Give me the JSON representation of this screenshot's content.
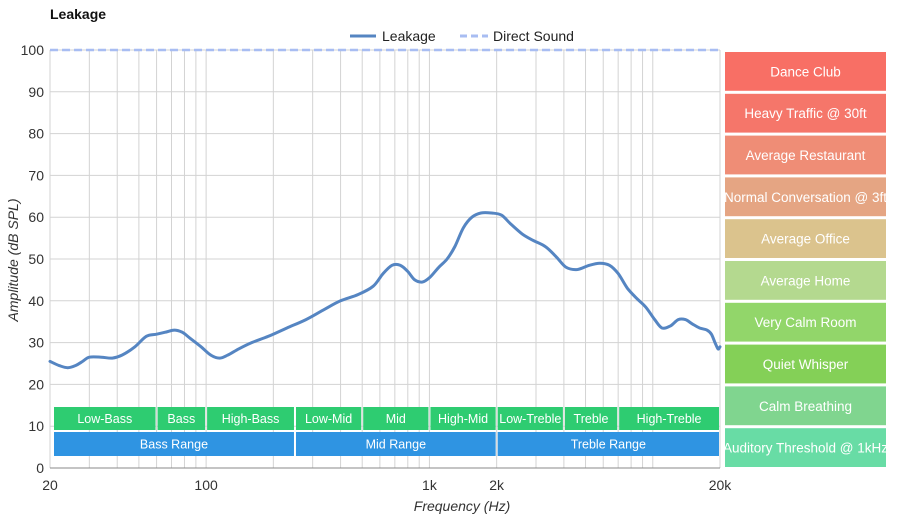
{
  "chart_data": {
    "type": "line",
    "title": "Leakage",
    "xlabel": "Frequency (Hz)",
    "ylabel": "Amplitude (dB SPL)",
    "x_scale": "log",
    "xlim": [
      20,
      20000
    ],
    "ylim": [
      0,
      100
    ],
    "x_ticks": [
      {
        "value": 20,
        "label": "20"
      },
      {
        "value": 100,
        "label": "100"
      },
      {
        "value": 1000,
        "label": "1k"
      },
      {
        "value": 2000,
        "label": "2k"
      },
      {
        "value": 20000,
        "label": "20k"
      }
    ],
    "y_ticks": [
      0,
      10,
      20,
      30,
      40,
      50,
      60,
      70,
      80,
      90,
      100
    ],
    "grid": true,
    "legend": {
      "position": "top-center"
    },
    "series": [
      {
        "name": "Leakage",
        "color": "#5585c2",
        "style": "solid",
        "points": [
          [
            20,
            25.5
          ],
          [
            22,
            24.5
          ],
          [
            24,
            24
          ],
          [
            26,
            24.5
          ],
          [
            28,
            25.5
          ],
          [
            30,
            26.5
          ],
          [
            34,
            26.5
          ],
          [
            38,
            26.3
          ],
          [
            42,
            27
          ],
          [
            48,
            29
          ],
          [
            54,
            31.5
          ],
          [
            60,
            32
          ],
          [
            66,
            32.5
          ],
          [
            72,
            33
          ],
          [
            78,
            32.5
          ],
          [
            85,
            31
          ],
          [
            95,
            29
          ],
          [
            105,
            27
          ],
          [
            115,
            26.3
          ],
          [
            125,
            27
          ],
          [
            140,
            28.5
          ],
          [
            160,
            30
          ],
          [
            190,
            31.5
          ],
          [
            230,
            33.5
          ],
          [
            280,
            35.5
          ],
          [
            340,
            38
          ],
          [
            400,
            40
          ],
          [
            480,
            41.5
          ],
          [
            560,
            43.5
          ],
          [
            620,
            46.5
          ],
          [
            680,
            48.5
          ],
          [
            740,
            48.5
          ],
          [
            800,
            47
          ],
          [
            860,
            45
          ],
          [
            930,
            44.5
          ],
          [
            1000,
            45.5
          ],
          [
            1100,
            48
          ],
          [
            1200,
            50
          ],
          [
            1300,
            53
          ],
          [
            1420,
            57.5
          ],
          [
            1550,
            60
          ],
          [
            1700,
            61
          ],
          [
            1900,
            61
          ],
          [
            2100,
            60.5
          ],
          [
            2300,
            58.5
          ],
          [
            2600,
            56
          ],
          [
            2900,
            54.5
          ],
          [
            3300,
            53
          ],
          [
            3700,
            50.5
          ],
          [
            4100,
            48
          ],
          [
            4600,
            47.5
          ],
          [
            5200,
            48.5
          ],
          [
            5800,
            49
          ],
          [
            6400,
            48.5
          ],
          [
            7000,
            46.5
          ],
          [
            7700,
            43
          ],
          [
            8500,
            40.5
          ],
          [
            9300,
            38.5
          ],
          [
            10200,
            35.5
          ],
          [
            11000,
            33.5
          ],
          [
            12000,
            34
          ],
          [
            13000,
            35.5
          ],
          [
            14000,
            35.5
          ],
          [
            15000,
            34.5
          ],
          [
            16200,
            33.5
          ],
          [
            17500,
            33
          ],
          [
            18300,
            32
          ],
          [
            19000,
            30
          ],
          [
            19600,
            28.5
          ],
          [
            20000,
            29
          ]
        ]
      },
      {
        "name": "Direct Sound",
        "color": "#a8bdf2",
        "style": "dashed",
        "points": [
          [
            20,
            100
          ],
          [
            20000,
            100
          ]
        ]
      }
    ],
    "range_bands": [
      {
        "label": "Low-Bass",
        "from": 20,
        "to": 60,
        "row": 1
      },
      {
        "label": "Bass",
        "from": 60,
        "to": 100,
        "row": 1
      },
      {
        "label": "High-Bass",
        "from": 100,
        "to": 250,
        "row": 1
      },
      {
        "label": "Low-Mid",
        "from": 250,
        "to": 500,
        "row": 1
      },
      {
        "label": "Mid",
        "from": 500,
        "to": 1000,
        "row": 1
      },
      {
        "label": "High-Mid",
        "from": 1000,
        "to": 2000,
        "row": 1
      },
      {
        "label": "Low-Treble",
        "from": 2000,
        "to": 4000,
        "row": 1
      },
      {
        "label": "Treble",
        "from": 4000,
        "to": 7000,
        "row": 1
      },
      {
        "label": "High-Treble",
        "from": 7000,
        "to": 20000,
        "row": 1
      },
      {
        "label": "Bass Range",
        "from": 20,
        "to": 250,
        "row": 2
      },
      {
        "label": "Mid Range",
        "from": 250,
        "to": 2000,
        "row": 2
      },
      {
        "label": "Treble Range",
        "from": 2000,
        "to": 20000,
        "row": 2
      }
    ],
    "band_colors": {
      "row1": "#2ecc71",
      "row2": "#2f94e2"
    },
    "reference_levels": [
      {
        "label": "Dance Club",
        "level": 100,
        "color": "#f86f65"
      },
      {
        "label": "Heavy Traffic @ 30ft",
        "level": 90,
        "color": "#f5766a"
      },
      {
        "label": "Average Restaurant",
        "level": 80,
        "color": "#ef8d76"
      },
      {
        "label": "Normal Conversation @ 3ft",
        "level": 70,
        "color": "#e5a583"
      },
      {
        "label": "Average Office",
        "level": 60,
        "color": "#dbc38d"
      },
      {
        "label": "Average Home",
        "level": 50,
        "color": "#b4d98f"
      },
      {
        "label": "Very Calm Room",
        "level": 40,
        "color": "#92d66a"
      },
      {
        "label": "Quiet Whisper",
        "level": 30,
        "color": "#84d057"
      },
      {
        "label": "Calm Breathing",
        "level": 20,
        "color": "#80d58f"
      },
      {
        "label": "Auditory Threshold @ 1kHz",
        "level": 10,
        "color": "#68dca5"
      }
    ]
  }
}
